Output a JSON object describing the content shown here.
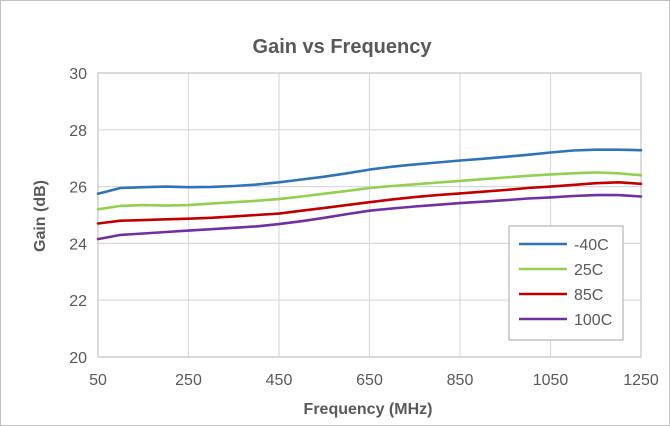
{
  "chart_data": {
    "type": "line",
    "title": "Gain vs Frequency",
    "xlabel": "Frequency (MHz)",
    "ylabel": "Gain (dB)",
    "xlim": [
      50,
      1250
    ],
    "ylim": [
      20,
      30
    ],
    "xticks": [
      50,
      250,
      450,
      650,
      850,
      1050,
      1250
    ],
    "yticks": [
      20,
      22,
      24,
      26,
      28,
      30
    ],
    "grid": true,
    "legend_position": "bottom-right",
    "x": [
      50,
      100,
      150,
      200,
      250,
      300,
      350,
      400,
      450,
      500,
      550,
      600,
      650,
      700,
      750,
      800,
      850,
      900,
      950,
      1000,
      1050,
      1100,
      1150,
      1200,
      1250
    ],
    "series": [
      {
        "name": "-40C",
        "color": "#2e75b6",
        "values": [
          25.75,
          25.95,
          25.98,
          26.0,
          25.98,
          25.99,
          26.02,
          26.07,
          26.15,
          26.25,
          26.35,
          26.47,
          26.6,
          26.7,
          26.78,
          26.85,
          26.92,
          26.98,
          27.05,
          27.12,
          27.2,
          27.27,
          27.3,
          27.3,
          27.28
        ]
      },
      {
        "name": "25C",
        "color": "#92d050",
        "values": [
          25.2,
          25.32,
          25.35,
          25.33,
          25.35,
          25.4,
          25.45,
          25.5,
          25.56,
          25.65,
          25.75,
          25.85,
          25.95,
          26.02,
          26.08,
          26.14,
          26.2,
          26.26,
          26.32,
          26.38,
          26.43,
          26.47,
          26.5,
          26.47,
          26.4
        ]
      },
      {
        "name": "85C",
        "color": "#c00000",
        "values": [
          24.7,
          24.8,
          24.82,
          24.85,
          24.87,
          24.9,
          24.95,
          25.0,
          25.05,
          25.15,
          25.25,
          25.35,
          25.45,
          25.55,
          25.63,
          25.7,
          25.76,
          25.82,
          25.88,
          25.95,
          26.0,
          26.06,
          26.12,
          26.15,
          26.1
        ]
      },
      {
        "name": "100C",
        "color": "#7030a0",
        "values": [
          24.15,
          24.3,
          24.35,
          24.4,
          24.45,
          24.5,
          24.55,
          24.6,
          24.68,
          24.78,
          24.9,
          25.03,
          25.15,
          25.23,
          25.3,
          25.36,
          25.42,
          25.47,
          25.52,
          25.58,
          25.62,
          25.67,
          25.7,
          25.7,
          25.65
        ]
      }
    ]
  }
}
